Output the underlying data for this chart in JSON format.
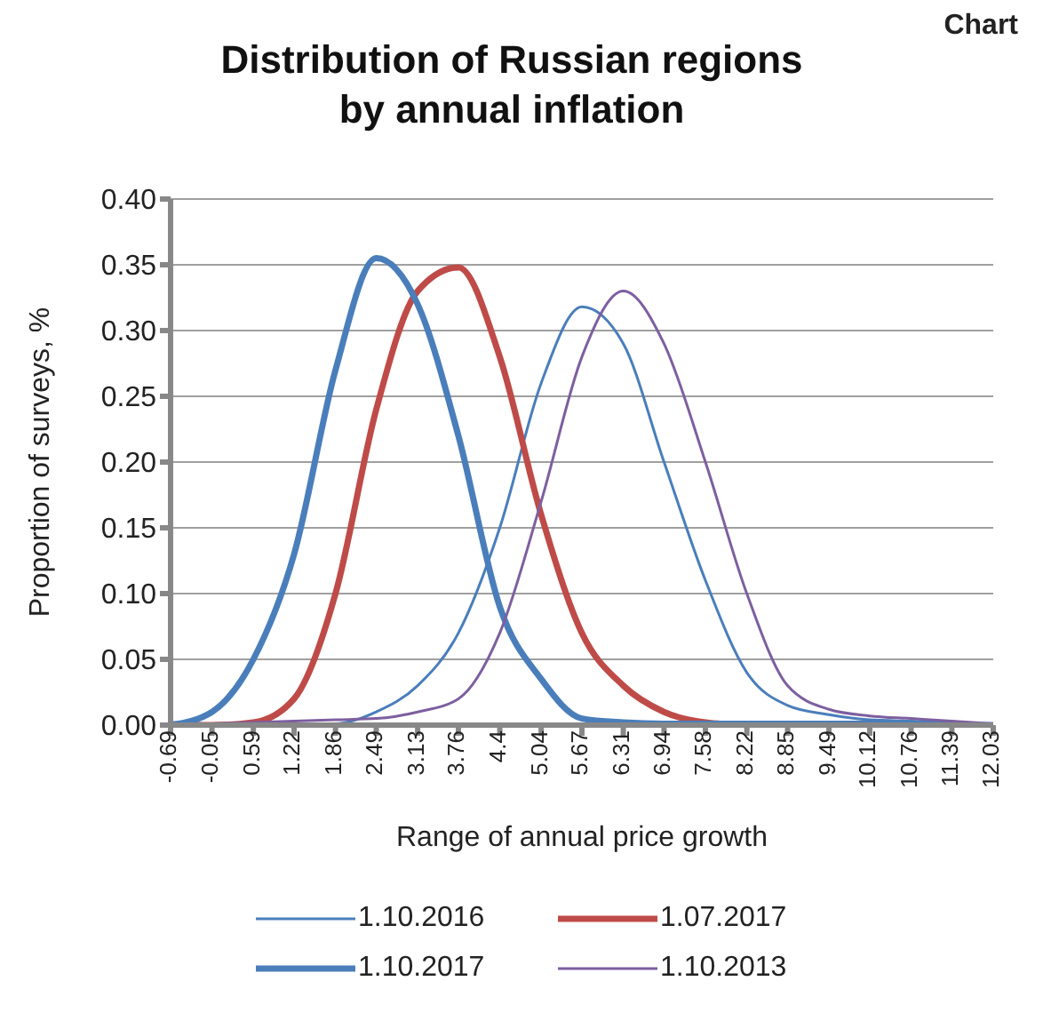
{
  "chart_data": {
    "type": "line",
    "title": "Distribution of Russian regions\nby annual inflation",
    "xlabel": "Range of annual price growth",
    "ylabel": "Proportion of surveys, %",
    "annotations": [
      "Chart"
    ],
    "x": [
      -0.69,
      -0.05,
      0.59,
      1.22,
      1.86,
      2.49,
      3.13,
      3.76,
      4.4,
      5.04,
      5.67,
      6.31,
      6.94,
      7.58,
      8.22,
      8.85,
      9.49,
      10.12,
      10.76,
      11.39,
      12.03
    ],
    "series": [
      {
        "name": "1.10.2016",
        "color": "#4a7ebb",
        "values": [
          0.002,
          0.001,
          0.001,
          0.001,
          0.001,
          0.01,
          0.03,
          0.07,
          0.15,
          0.26,
          0.318,
          0.29,
          0.2,
          0.11,
          0.04,
          0.015,
          0.008,
          0.004,
          0.003,
          0.002,
          0.0
        ]
      },
      {
        "name": "1.07.2017",
        "color": "#be4b48",
        "values": [
          0.0,
          0.0,
          0.002,
          0.02,
          0.1,
          0.24,
          0.33,
          0.348,
          0.28,
          0.16,
          0.07,
          0.03,
          0.01,
          0.002,
          0.0,
          null,
          null,
          null,
          null,
          null,
          null
        ]
      },
      {
        "name": "1.10.2017",
        "color": "#4a7ebb",
        "values": [
          0.0,
          0.01,
          0.05,
          0.13,
          0.27,
          0.355,
          0.32,
          0.22,
          0.09,
          0.035,
          0.005,
          0.002,
          0.001,
          0.001,
          0.001,
          0.001,
          0.001,
          0.001,
          0.001,
          0.0,
          0.0
        ]
      },
      {
        "name": "1.10.2013",
        "color": "#7d5fa0",
        "values": [
          0.0,
          0.001,
          0.002,
          0.003,
          0.004,
          0.005,
          0.01,
          0.02,
          0.07,
          0.17,
          0.28,
          0.33,
          0.29,
          0.2,
          0.1,
          0.03,
          0.012,
          0.007,
          0.005,
          0.003,
          0.001
        ]
      }
    ],
    "xlim": [
      -0.69,
      12.03
    ],
    "xticks": [
      -0.69,
      -0.05,
      0.59,
      1.22,
      1.86,
      2.49,
      3.13,
      3.76,
      4.4,
      5.04,
      5.67,
      6.31,
      6.94,
      7.58,
      8.22,
      8.85,
      9.49,
      10.12,
      10.76,
      11.39,
      12.03
    ],
    "ylim": [
      0,
      0.4
    ],
    "yticks": [
      {
        "value": 0,
        "label": "0.00"
      },
      {
        "value": 0.05,
        "label": "0.05"
      },
      {
        "value": 0.1,
        "label": "0.10"
      },
      {
        "value": 0.15,
        "label": "0.15"
      },
      {
        "value": 0.2,
        "label": "0.20"
      },
      {
        "value": 0.25,
        "label": "0.25"
      },
      {
        "value": 0.3,
        "label": "0.30"
      },
      {
        "value": 0.35,
        "label": "0.35"
      },
      {
        "value": 0.4,
        "label": "0.40"
      }
    ],
    "grid": "y",
    "legend": "bottom",
    "marker": "none",
    "line_style": "solid"
  }
}
